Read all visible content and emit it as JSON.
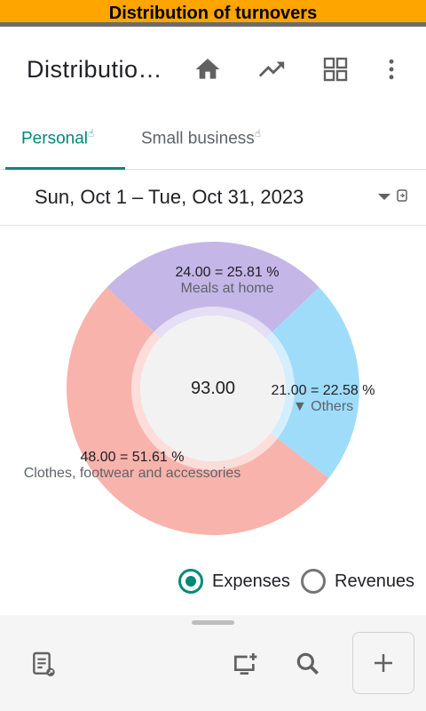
{
  "banner": {
    "text": "Distribution of turnovers"
  },
  "appbar": {
    "title": "Distribution of turnovers",
    "icons": [
      "home-icon",
      "trending-up-icon",
      "grid-view-icon",
      "more-vert-icon"
    ]
  },
  "tabs": [
    {
      "label": "Personal",
      "active": true
    },
    {
      "label": "Small business",
      "active": false
    }
  ],
  "date_range": {
    "text": "Sun, Oct 1 – Tue, Oct 31, 2023"
  },
  "chart_data": {
    "type": "pie",
    "total": "93.00",
    "slices": [
      {
        "name": "Meals at home",
        "value": 24.0,
        "label": "24.00 = 25.81 %",
        "color": "#C5B6E8"
      },
      {
        "name": "▼ Others",
        "value": 21.0,
        "label": "21.00 = 22.58 %",
        "color": "#9EDCFA"
      },
      {
        "name": "Clothes, footwear and accessories",
        "value": 48.0,
        "label": "48.00 = 51.61 %",
        "color": "#F8B3AC"
      }
    ]
  },
  "radios": [
    {
      "label": "Expenses",
      "checked": true
    },
    {
      "label": "Revenues",
      "checked": false
    }
  ],
  "colors": {
    "accent": "#00897B",
    "banner": "#FFA500"
  }
}
